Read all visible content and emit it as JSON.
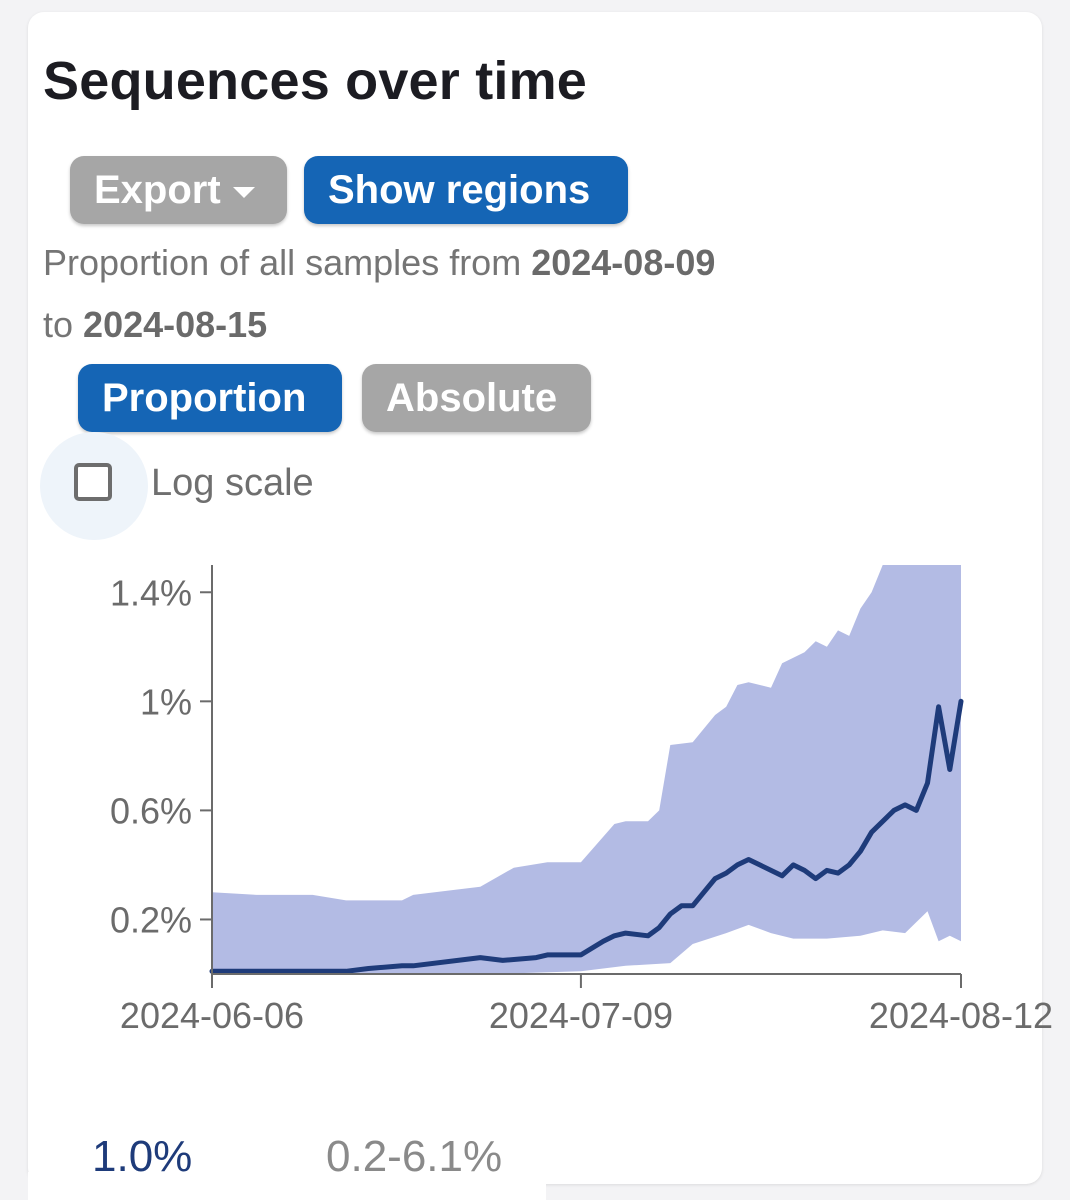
{
  "card": {
    "title": "Sequences over time",
    "export_label": "Export",
    "show_regions_label": "Show regions",
    "description_prefix": "Proportion of all samples from",
    "date_from": "2024-08-09",
    "description_to": "to",
    "date_to": "2024-08-15",
    "proportion_label": "Proportion",
    "absolute_label": "Absolute",
    "log_scale_label": "Log scale",
    "log_scale_checked": false
  },
  "summary": {
    "value": "1.0%",
    "ci": "0.2-6.1%"
  },
  "colors": {
    "line": "#1e3b7a",
    "band": "#b3bbe4",
    "accent_blue": "#1565b5",
    "button_gray": "#a6a6a6"
  },
  "chart_data": {
    "type": "area",
    "x_unit": "date",
    "y_unit": "proportion (%)",
    "xlim": [
      "2024-06-06",
      "2024-08-12"
    ],
    "ylim": [
      0,
      1.5
    ],
    "y_ticks": [
      {
        "value": 0.2,
        "label": "0.2%"
      },
      {
        "value": 0.6,
        "label": "0.6%"
      },
      {
        "value": 1.0,
        "label": "1%"
      },
      {
        "value": 1.4,
        "label": "1.4%"
      }
    ],
    "x_ticks": [
      {
        "value": "2024-06-06",
        "label": "2024-06-06"
      },
      {
        "value": "2024-07-09",
        "label": "2024-07-09"
      },
      {
        "value": "2024-08-12",
        "label": "2024-08-12"
      }
    ],
    "series": [
      {
        "role": "estimate",
        "x": [
          "2024-06-06",
          "2024-06-10",
          "2024-06-14",
          "2024-06-18",
          "2024-06-20",
          "2024-06-23",
          "2024-06-24",
          "2024-06-30",
          "2024-07-02",
          "2024-07-05",
          "2024-07-06",
          "2024-07-09",
          "2024-07-11",
          "2024-07-12",
          "2024-07-13",
          "2024-07-15",
          "2024-07-16",
          "2024-07-17",
          "2024-07-18",
          "2024-07-19",
          "2024-07-20",
          "2024-07-21",
          "2024-07-22",
          "2024-07-23",
          "2024-07-24",
          "2024-07-25",
          "2024-07-27",
          "2024-07-28",
          "2024-07-29",
          "2024-07-30",
          "2024-07-31",
          "2024-08-01",
          "2024-08-02",
          "2024-08-03",
          "2024-08-04",
          "2024-08-06",
          "2024-08-07",
          "2024-08-08",
          "2024-08-09",
          "2024-08-10",
          "2024-08-11",
          "2024-08-12"
        ],
        "y": [
          0.01,
          0.01,
          0.01,
          0.01,
          0.02,
          0.03,
          0.03,
          0.06,
          0.05,
          0.06,
          0.07,
          0.07,
          0.12,
          0.14,
          0.15,
          0.14,
          0.17,
          0.22,
          0.25,
          0.25,
          0.3,
          0.35,
          0.37,
          0.4,
          0.42,
          0.4,
          0.36,
          0.4,
          0.38,
          0.35,
          0.38,
          0.37,
          0.4,
          0.45,
          0.52,
          0.6,
          0.62,
          0.6,
          0.7,
          0.98,
          0.75,
          1.0
        ]
      },
      {
        "role": "ci_upper",
        "x": [
          "2024-06-06",
          "2024-06-10",
          "2024-06-15",
          "2024-06-18",
          "2024-06-23",
          "2024-06-24",
          "2024-06-30",
          "2024-07-03",
          "2024-07-06",
          "2024-07-09",
          "2024-07-12",
          "2024-07-13",
          "2024-07-15",
          "2024-07-16",
          "2024-07-17",
          "2024-07-19",
          "2024-07-21",
          "2024-07-22",
          "2024-07-23",
          "2024-07-24",
          "2024-07-26",
          "2024-07-27",
          "2024-07-29",
          "2024-07-30",
          "2024-07-31",
          "2024-08-01",
          "2024-08-02",
          "2024-08-03",
          "2024-08-04",
          "2024-08-05",
          "2024-08-06",
          "2024-08-07",
          "2024-08-08",
          "2024-08-09",
          "2024-08-10",
          "2024-08-11",
          "2024-08-12"
        ],
        "y": [
          0.3,
          0.29,
          0.29,
          0.27,
          0.27,
          0.29,
          0.32,
          0.39,
          0.41,
          0.41,
          0.55,
          0.56,
          0.56,
          0.6,
          0.84,
          0.85,
          0.95,
          0.98,
          1.06,
          1.07,
          1.05,
          1.14,
          1.18,
          1.22,
          1.2,
          1.26,
          1.24,
          1.34,
          1.4,
          1.5,
          1.5,
          1.5,
          1.5,
          1.5,
          1.5,
          1.5,
          1.5
        ]
      },
      {
        "role": "ci_lower",
        "x": [
          "2024-06-06",
          "2024-06-25",
          "2024-07-01",
          "2024-07-09",
          "2024-07-13",
          "2024-07-17",
          "2024-07-19",
          "2024-07-22",
          "2024-07-24",
          "2024-07-26",
          "2024-07-28",
          "2024-07-31",
          "2024-08-03",
          "2024-08-05",
          "2024-08-07",
          "2024-08-09",
          "2024-08-10",
          "2024-08-11",
          "2024-08-12"
        ],
        "y": [
          0,
          0,
          0,
          0.01,
          0.03,
          0.04,
          0.11,
          0.15,
          0.18,
          0.15,
          0.13,
          0.13,
          0.14,
          0.16,
          0.15,
          0.23,
          0.12,
          0.14,
          0.12
        ]
      }
    ]
  }
}
